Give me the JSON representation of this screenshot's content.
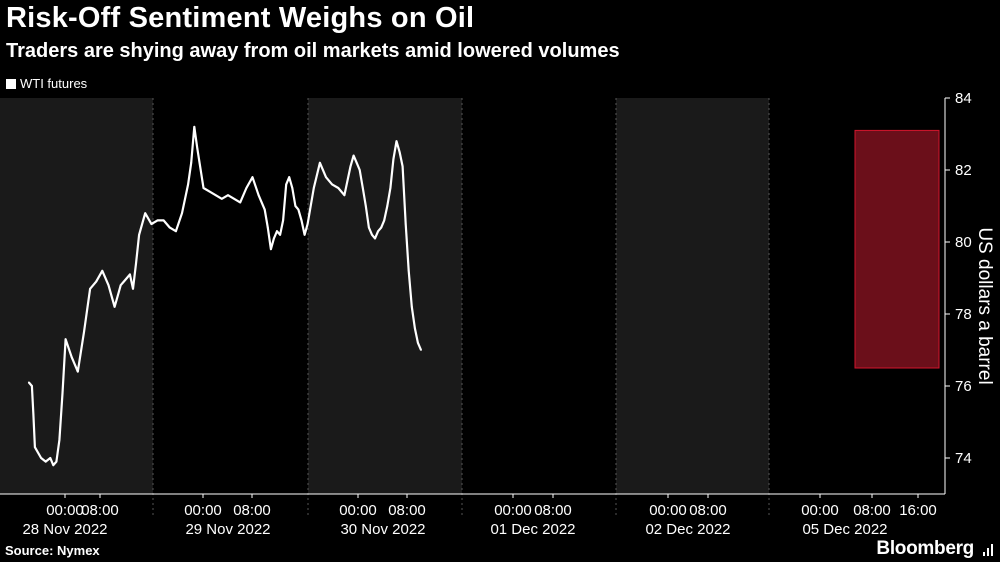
{
  "header": {
    "title": "Risk-Off Sentiment Weighs on Oil",
    "subtitle": "Traders are shying away from oil markets amid lowered volumes"
  },
  "footer": {
    "source": "Source: Nymex",
    "brand": "Bloomberg"
  },
  "colors": {
    "background": "#000000",
    "shade": "#1a1a1a",
    "line": "#ffffff",
    "highlight_fill": "#6b0f1a",
    "highlight_stroke": "#d2142c",
    "highlight_line": "#f4a3b3"
  },
  "chart_data": {
    "type": "line",
    "legend": [
      "WTI futures"
    ],
    "legend_position": "top-left",
    "ylabel": "US dollars a barrel",
    "ylim": [
      73,
      84
    ],
    "yticks": [
      74,
      76,
      78,
      80,
      82,
      84
    ],
    "y_axis_side": "right",
    "grid": "vertical dashed day separators",
    "x_tick_labels": [
      {
        "time": "00:00",
        "date": "28 Nov 2022"
      },
      {
        "time": "08:00",
        "date": ""
      },
      {
        "time": "00:00",
        "date": "29 Nov 2022"
      },
      {
        "time": "08:00",
        "date": ""
      },
      {
        "time": "00:00",
        "date": "30 Nov 2022"
      },
      {
        "time": "08:00",
        "date": ""
      },
      {
        "time": "00:00",
        "date": "01 Dec 2022"
      },
      {
        "time": "08:00",
        "date": ""
      },
      {
        "time": "00:00",
        "date": "02 Dec 2022"
      },
      {
        "time": "08:00",
        "date": ""
      },
      {
        "time": "00:00",
        "date": "05 Dec 2022"
      },
      {
        "time": "08:00",
        "date": ""
      },
      {
        "time": "16:00",
        "date": ""
      }
    ],
    "x_hours": [
      -6,
      -4,
      -3,
      -2,
      2,
      5,
      8,
      10,
      12,
      14,
      16,
      18,
      22,
      26,
      30,
      34,
      38,
      42,
      46,
      50,
      52,
      54,
      56,
      58,
      60,
      62,
      64,
      66,
      70,
      74,
      78,
      82,
      86,
      90,
      94,
      98,
      100,
      102,
      104,
      108,
      112,
      116,
      120,
      124,
      128,
      132,
      136,
      140,
      144,
      148,
      150,
      152,
      154,
      156,
      158,
      160,
      162,
      164,
      166,
      168,
      170,
      172,
      174,
      176,
      180,
      184,
      188,
      192,
      196,
      200,
      204,
      206,
      208,
      210,
      212,
      214,
      216,
      218,
      220,
      222,
      224,
      226,
      228,
      230,
      232,
      234,
      236,
      238,
      240,
      242,
      244,
      246,
      248,
      250
    ],
    "series": [
      {
        "name": "WTI futures",
        "values": [
          76.1,
          76.0,
          75.2,
          74.3,
          74.0,
          73.9,
          74.0,
          73.8,
          73.9,
          74.5,
          75.8,
          77.3,
          76.8,
          76.4,
          77.5,
          78.7,
          78.9,
          79.2,
          78.8,
          78.2,
          78.5,
          78.8,
          78.9,
          79.0,
          79.1,
          78.7,
          79.4,
          80.2,
          80.8,
          80.5,
          80.6,
          80.6,
          80.4,
          80.3,
          80.8,
          81.6,
          82.2,
          83.2,
          82.6,
          81.5,
          81.4,
          81.3,
          81.2,
          81.3,
          81.2,
          81.1,
          81.5,
          81.8,
          81.3,
          80.9,
          80.4,
          79.8,
          80.1,
          80.3,
          80.2,
          80.6,
          81.6,
          81.8,
          81.5,
          81.0,
          80.9,
          80.6,
          80.2,
          80.5,
          81.5,
          82.2,
          81.8,
          81.6,
          81.5,
          81.3,
          82.1,
          82.4,
          82.2,
          82.0,
          81.5,
          81.0,
          80.4,
          80.2,
          80.1,
          80.3,
          80.4,
          80.6,
          81.0,
          81.5,
          82.3,
          82.8,
          82.5,
          82.1,
          80.5,
          79.2,
          78.2,
          77.6,
          77.2,
          77.0
        ]
      }
    ],
    "annotation": {
      "type": "highlight",
      "x_start_label": "05 Dec 2022 07:00",
      "x_end_label": "05 Dec 2022 19:00",
      "y_range": [
        76.5,
        83.1
      ]
    }
  }
}
